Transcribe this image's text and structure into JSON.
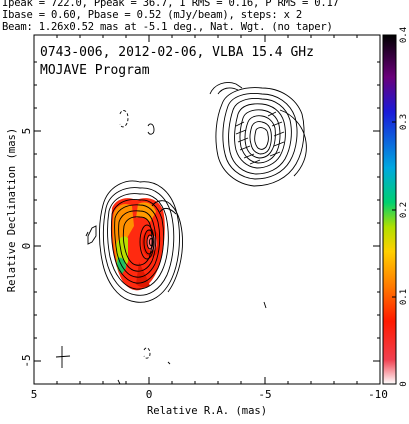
{
  "header": {
    "line1": "Ipeak = 722.0, Ppeak = 36.7, I RMS = 0.16, P RMS = 0.17",
    "line2": "Ibase = 0.60, Pbase = 0.52 (mJy/beam), steps: x 2",
    "line3": "Beam: 1.26x0.52 mas at -5.1 deg., Nat. Wgt. (no taper)"
  },
  "plot": {
    "title": "0743-006, 2012-02-06, VLBA 15.4 GHz",
    "subtitle": "MOJAVE Program",
    "xlabel": "Relative R.A. (mas)",
    "ylabel": "Relative Declination (mas)",
    "xticks": [
      "5",
      "0",
      "-5",
      "-10"
    ],
    "yticks": [
      "5",
      "0",
      "-5"
    ]
  },
  "colorbar": {
    "ticks": [
      "0.4",
      "0.3",
      "0.2",
      "0.1",
      "0"
    ],
    "colors": [
      "#000000",
      "#6a007a",
      "#2a2ad0",
      "#00a0e0",
      "#00d060",
      "#c8e000",
      "#ffd000",
      "#ff8000",
      "#ff2000",
      "#f01818",
      "#ffffff"
    ]
  }
}
